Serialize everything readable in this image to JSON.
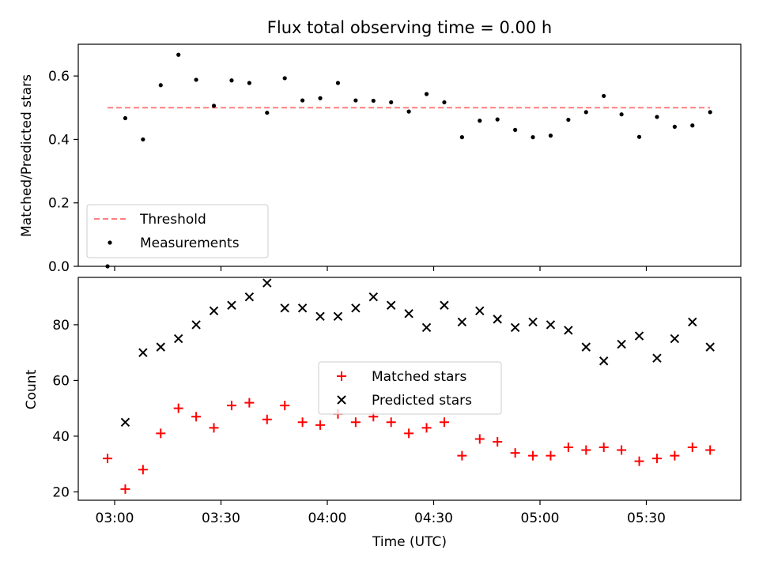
{
  "chart_data": [
    {
      "type": "scatter",
      "title": "Flux total observing time = 0.00 h",
      "ylabel": "Matched/Predicted stars",
      "ylim": [
        0.0,
        0.7
      ],
      "yticks": [
        0.0,
        0.2,
        0.4,
        0.6
      ],
      "ytick_labels": [
        "0.0",
        "0.2",
        "0.4",
        "0.6"
      ],
      "legend_position": "lower-left",
      "threshold": {
        "name": "Threshold",
        "value": 0.5,
        "x_start": "02:58",
        "x_end": "05:48",
        "color": "#ff7f7f",
        "style": "dashed"
      },
      "series": [
        {
          "name": "Measurements",
          "color": "#000000",
          "marker": "dot",
          "x": [
            "02:58",
            "03:03",
            "03:08",
            "03:13",
            "03:18",
            "03:23",
            "03:28",
            "03:33",
            "03:38",
            "03:43",
            "03:48",
            "03:53",
            "03:58",
            "04:03",
            "04:08",
            "04:13",
            "04:18",
            "04:23",
            "04:28",
            "04:33",
            "04:38",
            "04:43",
            "04:48",
            "04:53",
            "04:58",
            "05:03",
            "05:08",
            "05:13",
            "05:18",
            "05:23",
            "05:28",
            "05:33",
            "05:38",
            "05:43",
            "05:48"
          ],
          "y": [
            0.0,
            0.467,
            0.4,
            0.571,
            0.667,
            0.588,
            0.506,
            0.586,
            0.578,
            0.484,
            0.593,
            0.523,
            0.53,
            0.578,
            0.523,
            0.522,
            0.517,
            0.488,
            0.543,
            0.517,
            0.407,
            0.459,
            0.463,
            0.43,
            0.407,
            0.412,
            0.462,
            0.486,
            0.537,
            0.479,
            0.408,
            0.471,
            0.44,
            0.444,
            0.486
          ]
        }
      ]
    },
    {
      "type": "scatter",
      "ylabel": "Count",
      "xlabel": "Time (UTC)",
      "ylim": [
        17,
        97
      ],
      "yticks": [
        20,
        40,
        60,
        80
      ],
      "ytick_labels": [
        "20",
        "40",
        "60",
        "80"
      ],
      "xticks": [
        "03:00",
        "03:30",
        "04:00",
        "04:30",
        "05:00",
        "05:30"
      ],
      "legend_position": "center",
      "series": [
        {
          "name": "Matched stars",
          "color": "#ff0000",
          "marker": "plus",
          "x": [
            "02:58",
            "03:03",
            "03:08",
            "03:13",
            "03:18",
            "03:23",
            "03:28",
            "03:33",
            "03:38",
            "03:43",
            "03:48",
            "03:53",
            "03:58",
            "04:03",
            "04:08",
            "04:13",
            "04:18",
            "04:23",
            "04:28",
            "04:33",
            "04:38",
            "04:43",
            "04:48",
            "04:53",
            "04:58",
            "05:03",
            "05:08",
            "05:13",
            "05:18",
            "05:23",
            "05:28",
            "05:33",
            "05:38",
            "05:43",
            "05:48"
          ],
          "y": [
            32,
            21,
            28,
            41,
            50,
            47,
            43,
            51,
            52,
            46,
            51,
            45,
            44,
            48,
            45,
            47,
            45,
            41,
            43,
            45,
            33,
            39,
            38,
            34,
            33,
            33,
            36,
            35,
            36,
            35,
            31,
            32,
            33,
            36,
            35
          ]
        },
        {
          "name": "Predicted stars",
          "color": "#000000",
          "marker": "x",
          "x": [
            "03:03",
            "03:08",
            "03:13",
            "03:18",
            "03:23",
            "03:28",
            "03:33",
            "03:38",
            "03:43",
            "03:48",
            "03:53",
            "03:58",
            "04:03",
            "04:08",
            "04:13",
            "04:18",
            "04:23",
            "04:28",
            "04:33",
            "04:38",
            "04:43",
            "04:48",
            "04:53",
            "04:58",
            "05:03",
            "05:08",
            "05:13",
            "05:18",
            "05:23",
            "05:28",
            "05:33",
            "05:38",
            "05:43",
            "05:48"
          ],
          "y": [
            45,
            70,
            72,
            75,
            80,
            85,
            87,
            90,
            95,
            86,
            86,
            83,
            83,
            86,
            90,
            87,
            84,
            79,
            87,
            81,
            85,
            82,
            79,
            81,
            80,
            78,
            72,
            67,
            73,
            76,
            68,
            75,
            81,
            72
          ]
        }
      ]
    }
  ]
}
